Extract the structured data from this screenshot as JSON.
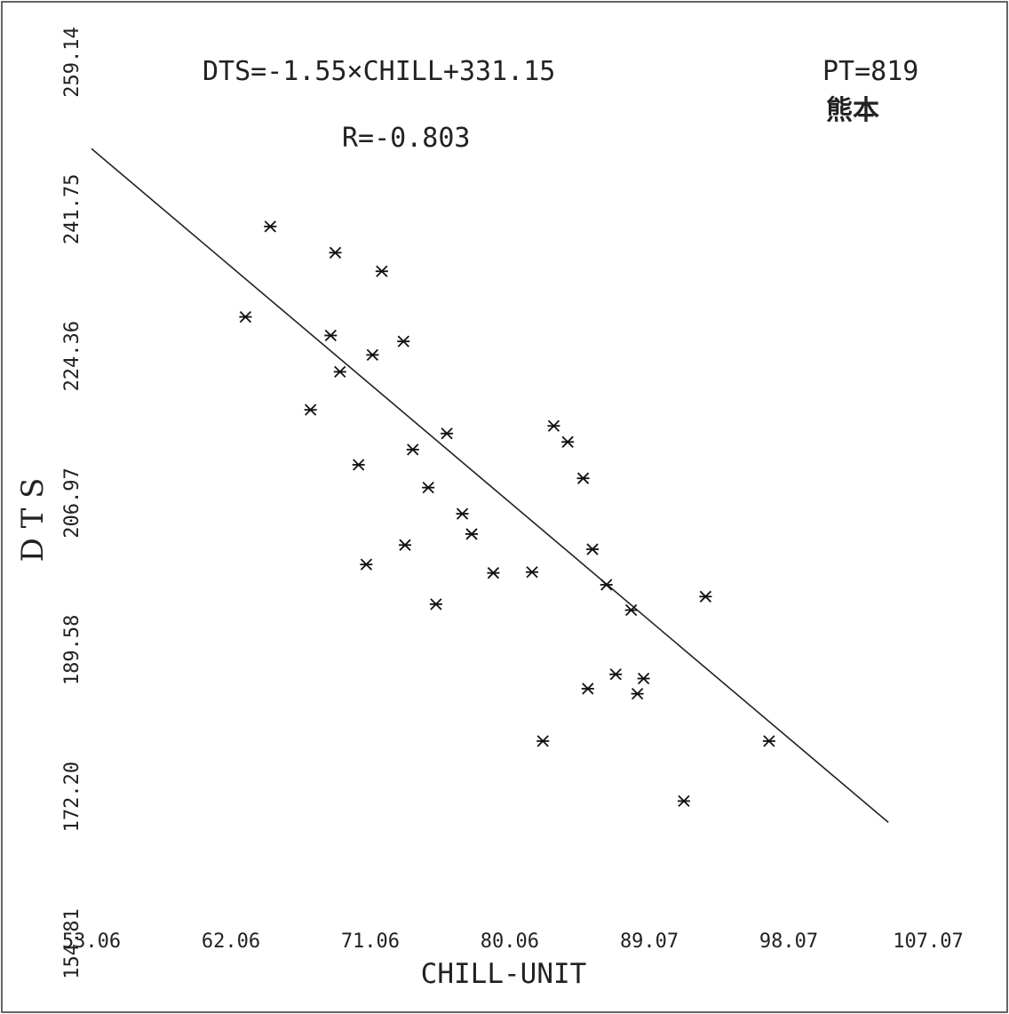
{
  "chart_data": {
    "type": "scatter",
    "equation": "DTS=-1.55×CHILL+331.15",
    "correlation": "R=-0.803",
    "pt_label": "PT=819",
    "location": "熊本",
    "xlabel": "CHILL-UNIT",
    "ylabel": "D T S",
    "xlim": [
      53.06,
      107.07
    ],
    "ylim": [
      154.81,
      259.14
    ],
    "x_ticks": [
      "53.06",
      "62.06",
      "71.06",
      "80.06",
      "89.07",
      "98.07",
      "107.07"
    ],
    "y_ticks": [
      "154.81",
      "172.20",
      "189.58",
      "206.97",
      "224.36",
      "241.75",
      "259.14"
    ],
    "regression": {
      "slope": -1.55,
      "intercept": 331.15,
      "x_start": 53.06,
      "x_end": 104.5
    },
    "points": [
      {
        "x": 63.0,
        "y": 229.0
      },
      {
        "x": 64.6,
        "y": 239.7
      },
      {
        "x": 67.2,
        "y": 218.0
      },
      {
        "x": 68.5,
        "y": 226.8
      },
      {
        "x": 68.8,
        "y": 236.6
      },
      {
        "x": 69.1,
        "y": 222.5
      },
      {
        "x": 70.3,
        "y": 211.5
      },
      {
        "x": 70.8,
        "y": 199.7
      },
      {
        "x": 71.2,
        "y": 224.5
      },
      {
        "x": 71.8,
        "y": 234.4
      },
      {
        "x": 73.2,
        "y": 226.1
      },
      {
        "x": 73.3,
        "y": 202.0
      },
      {
        "x": 73.8,
        "y": 213.3
      },
      {
        "x": 74.8,
        "y": 208.8
      },
      {
        "x": 75.3,
        "y": 195.0
      },
      {
        "x": 76.0,
        "y": 215.2
      },
      {
        "x": 77.0,
        "y": 205.7
      },
      {
        "x": 77.6,
        "y": 203.3
      },
      {
        "x": 79.0,
        "y": 198.7
      },
      {
        "x": 81.5,
        "y": 198.8
      },
      {
        "x": 82.2,
        "y": 178.8
      },
      {
        "x": 82.9,
        "y": 216.1
      },
      {
        "x": 83.8,
        "y": 214.2
      },
      {
        "x": 84.8,
        "y": 209.9
      },
      {
        "x": 85.1,
        "y": 185.0
      },
      {
        "x": 85.4,
        "y": 201.5
      },
      {
        "x": 86.3,
        "y": 197.3
      },
      {
        "x": 86.9,
        "y": 186.7
      },
      {
        "x": 87.9,
        "y": 194.3
      },
      {
        "x": 88.3,
        "y": 184.4
      },
      {
        "x": 88.7,
        "y": 186.2
      },
      {
        "x": 91.3,
        "y": 171.7
      },
      {
        "x": 92.7,
        "y": 195.9
      },
      {
        "x": 96.8,
        "y": 178.8
      }
    ]
  }
}
